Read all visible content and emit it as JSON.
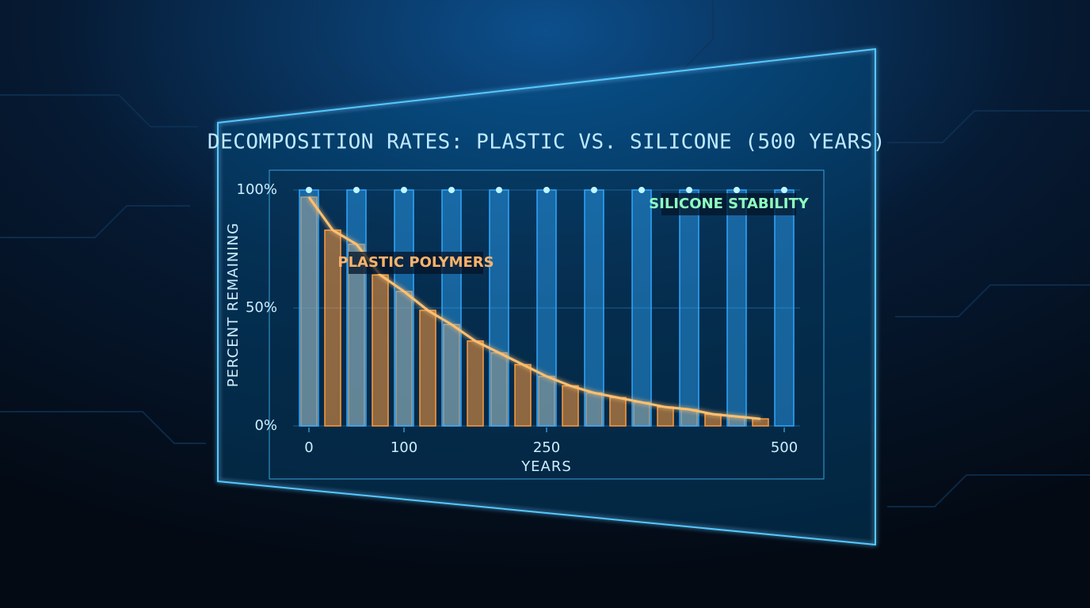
{
  "chart_data": {
    "type": "bar",
    "title": "DECOMPOSITION RATES: PLASTIC VS. SILICONE (500 YEARS)",
    "x_label": "YEARS",
    "y_label": "PERCENT REMAINING",
    "xlim": [
      0,
      500
    ],
    "xticks": [
      0,
      100,
      250,
      500
    ],
    "ylim": [
      0,
      100
    ],
    "yticks": [
      {
        "value": 0,
        "label": "0%"
      },
      {
        "value": 50,
        "label": "50%"
      },
      {
        "value": 100,
        "label": "100%"
      }
    ],
    "grid": true,
    "series": [
      {
        "name": "PLASTIC POLYMERS",
        "color": "#ff9a3c",
        "x": [
          0,
          25,
          50,
          75,
          100,
          125,
          150,
          175,
          200,
          225,
          250,
          275,
          300,
          325,
          350,
          375,
          400,
          425,
          450,
          475
        ],
        "values": [
          97,
          83,
          77,
          64,
          57,
          49,
          43,
          36,
          31,
          26,
          21,
          17,
          14,
          12,
          10,
          8,
          7,
          5,
          4,
          3
        ]
      },
      {
        "name": "SILICONE STABILITY",
        "color": "#2fa8ff",
        "x": [
          0,
          50,
          100,
          150,
          200,
          250,
          300,
          350,
          400,
          450,
          500
        ],
        "values": [
          100,
          100,
          100,
          100,
          100,
          100,
          100,
          100,
          100,
          100,
          100
        ]
      }
    ]
  }
}
